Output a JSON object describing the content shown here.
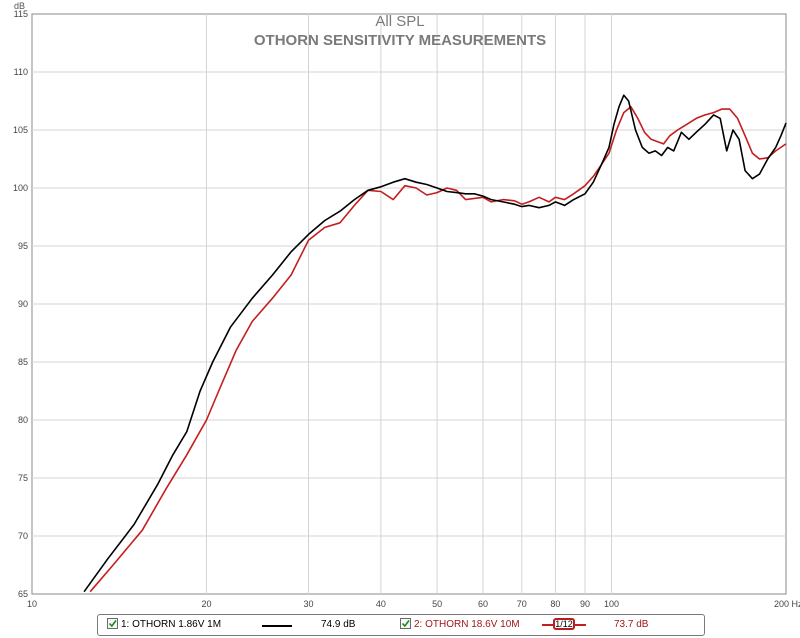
{
  "chart_data": {
    "type": "line",
    "title": "All SPL",
    "subtitle": "OTHORN SENSITIVITY MEASUREMENTS",
    "xscale": "log",
    "xlim": [
      10,
      200
    ],
    "ylim": [
      65,
      115
    ],
    "xunit": "Hz",
    "yunit": "dB",
    "grid": true,
    "x_ticks": [
      10,
      20,
      30,
      40,
      50,
      60,
      70,
      80,
      90,
      100,
      200
    ],
    "x_tick_labels": [
      "10",
      "20",
      "30",
      "40",
      "50",
      "60",
      "70",
      "80",
      "90",
      "100",
      "200 Hz"
    ],
    "y_ticks": [
      65,
      70,
      75,
      80,
      85,
      90,
      95,
      100,
      105,
      110,
      115
    ],
    "series": [
      {
        "name": "1: OTHORN 1.86V 1M",
        "color": "#000000",
        "points": [
          [
            12.3,
            65.2
          ],
          [
            13.5,
            68.0
          ],
          [
            15.0,
            71.0
          ],
          [
            16.5,
            74.5
          ],
          [
            17.5,
            77.0
          ],
          [
            18.5,
            79.0
          ],
          [
            19.5,
            82.5
          ],
          [
            20.5,
            85.0
          ],
          [
            22.0,
            88.0
          ],
          [
            24.0,
            90.5
          ],
          [
            26.0,
            92.5
          ],
          [
            28.0,
            94.5
          ],
          [
            30.0,
            96.0
          ],
          [
            32.0,
            97.2
          ],
          [
            34.0,
            98.0
          ],
          [
            36.0,
            99.0
          ],
          [
            38.0,
            99.8
          ],
          [
            40.0,
            100.1
          ],
          [
            42.0,
            100.5
          ],
          [
            44.0,
            100.8
          ],
          [
            46.0,
            100.5
          ],
          [
            48.0,
            100.3
          ],
          [
            50.0,
            100.0
          ],
          [
            52.0,
            99.7
          ],
          [
            54.0,
            99.6
          ],
          [
            56.0,
            99.5
          ],
          [
            58.0,
            99.5
          ],
          [
            60.0,
            99.3
          ],
          [
            62.0,
            99.0
          ],
          [
            65.0,
            98.8
          ],
          [
            68.0,
            98.6
          ],
          [
            70.0,
            98.4
          ],
          [
            72.0,
            98.5
          ],
          [
            75.0,
            98.3
          ],
          [
            78.0,
            98.5
          ],
          [
            80.0,
            98.8
          ],
          [
            83.0,
            98.5
          ],
          [
            86.0,
            99.0
          ],
          [
            90.0,
            99.5
          ],
          [
            93.0,
            100.5
          ],
          [
            96.0,
            102.0
          ],
          [
            99.0,
            103.5
          ],
          [
            101.0,
            105.5
          ],
          [
            103.0,
            107.0
          ],
          [
            105.0,
            108.0
          ],
          [
            107.0,
            107.5
          ],
          [
            110.0,
            105.0
          ],
          [
            113.0,
            103.5
          ],
          [
            116.0,
            103.0
          ],
          [
            119.0,
            103.2
          ],
          [
            122.0,
            102.8
          ],
          [
            125.0,
            103.5
          ],
          [
            128.0,
            103.2
          ],
          [
            132.0,
            104.8
          ],
          [
            136.0,
            104.2
          ],
          [
            140.0,
            104.8
          ],
          [
            145.0,
            105.5
          ],
          [
            150.0,
            106.3
          ],
          [
            154.0,
            106.0
          ],
          [
            158.0,
            103.2
          ],
          [
            162.0,
            105.0
          ],
          [
            166.0,
            104.2
          ],
          [
            170.0,
            101.5
          ],
          [
            175.0,
            100.8
          ],
          [
            180.0,
            101.2
          ],
          [
            186.0,
            102.5
          ],
          [
            192.0,
            103.5
          ],
          [
            196.0,
            104.5
          ],
          [
            200.0,
            105.6
          ]
        ]
      },
      {
        "name": "2: OTHORN 18.6V 10M",
        "color": "#c41e1e",
        "points": [
          [
            12.6,
            65.2
          ],
          [
            13.8,
            67.5
          ],
          [
            15.5,
            70.5
          ],
          [
            17.0,
            74.0
          ],
          [
            18.5,
            77.0
          ],
          [
            20.0,
            80.0
          ],
          [
            21.0,
            82.5
          ],
          [
            22.5,
            86.0
          ],
          [
            24.0,
            88.5
          ],
          [
            26.0,
            90.5
          ],
          [
            28.0,
            92.5
          ],
          [
            30.0,
            95.5
          ],
          [
            32.0,
            96.6
          ],
          [
            34.0,
            97.0
          ],
          [
            36.0,
            98.5
          ],
          [
            38.0,
            99.8
          ],
          [
            40.0,
            99.7
          ],
          [
            42.0,
            99.0
          ],
          [
            44.0,
            100.2
          ],
          [
            46.0,
            100.0
          ],
          [
            48.0,
            99.4
          ],
          [
            50.0,
            99.6
          ],
          [
            52.0,
            100.0
          ],
          [
            54.0,
            99.8
          ],
          [
            56.0,
            99.0
          ],
          [
            58.0,
            99.1
          ],
          [
            60.0,
            99.2
          ],
          [
            62.0,
            98.8
          ],
          [
            65.0,
            99.0
          ],
          [
            68.0,
            98.9
          ],
          [
            70.0,
            98.6
          ],
          [
            72.0,
            98.8
          ],
          [
            75.0,
            99.2
          ],
          [
            78.0,
            98.8
          ],
          [
            80.0,
            99.2
          ],
          [
            83.0,
            99.0
          ],
          [
            86.0,
            99.5
          ],
          [
            90.0,
            100.2
          ],
          [
            93.0,
            101.0
          ],
          [
            96.0,
            102.0
          ],
          [
            99.0,
            103.0
          ],
          [
            102.0,
            105.0
          ],
          [
            105.0,
            106.5
          ],
          [
            108.0,
            107.0
          ],
          [
            111.0,
            106.0
          ],
          [
            114.0,
            104.8
          ],
          [
            117.0,
            104.2
          ],
          [
            120.0,
            104.0
          ],
          [
            123.0,
            103.8
          ],
          [
            126.0,
            104.5
          ],
          [
            130.0,
            105.0
          ],
          [
            135.0,
            105.5
          ],
          [
            140.0,
            106.0
          ],
          [
            145.0,
            106.3
          ],
          [
            150.0,
            106.5
          ],
          [
            155.0,
            106.8
          ],
          [
            160.0,
            106.8
          ],
          [
            165.0,
            106.0
          ],
          [
            170.0,
            104.5
          ],
          [
            175.0,
            103.0
          ],
          [
            180.0,
            102.5
          ],
          [
            186.0,
            102.6
          ],
          [
            192.0,
            103.2
          ],
          [
            200.0,
            103.8
          ]
        ]
      }
    ]
  },
  "legend": {
    "item1_label": "1: OTHORN 1.86V 1M",
    "item1_value": "74.9 dB",
    "item2_label": "2: OTHORN 18.6V 10M",
    "item2_value": "73.7 dB",
    "smoothing_label": "1/12"
  }
}
